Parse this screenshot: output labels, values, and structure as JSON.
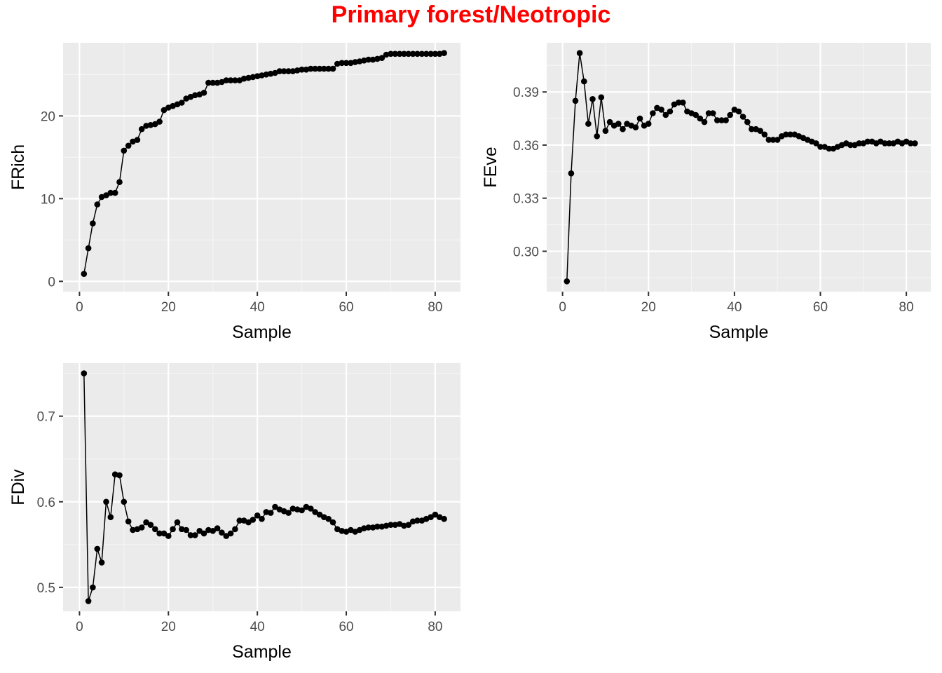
{
  "title": "Primary forest/Neotropic",
  "colors": {
    "title": "#ff0000",
    "panel_bg": "#ebebeb",
    "grid_major": "#ffffff",
    "grid_minor": "#f5f5f5",
    "line": "#000000",
    "point": "#000000",
    "tick_label": "#4d4d4d"
  },
  "chart_data": [
    {
      "type": "line",
      "markers": true,
      "xlabel": "Sample",
      "ylabel": "FRich",
      "xlim": [
        0,
        82
      ],
      "ylim": [
        0,
        27.6
      ],
      "xticks": [
        0,
        20,
        40,
        60,
        80
      ],
      "yticks": [
        0,
        10,
        20
      ],
      "ytick_labels": [
        "0",
        "10",
        "20"
      ],
      "grid": true,
      "x": [
        1,
        2,
        3,
        4,
        5,
        6,
        7,
        8,
        9,
        10,
        11,
        12,
        13,
        14,
        15,
        16,
        17,
        18,
        19,
        20,
        21,
        22,
        23,
        24,
        25,
        26,
        27,
        28,
        29,
        30,
        31,
        32,
        33,
        34,
        35,
        36,
        37,
        38,
        39,
        40,
        41,
        42,
        43,
        44,
        45,
        46,
        47,
        48,
        49,
        50,
        51,
        52,
        53,
        54,
        55,
        56,
        57,
        58,
        59,
        60,
        61,
        62,
        63,
        64,
        65,
        66,
        67,
        68,
        69,
        70,
        71,
        72,
        73,
        74,
        75,
        76,
        77,
        78,
        79,
        80,
        81,
        82
      ],
      "values": [
        0.9,
        4.0,
        7.0,
        9.3,
        10.2,
        10.4,
        10.7,
        10.7,
        12.0,
        15.8,
        16.4,
        16.9,
        17.1,
        18.4,
        18.8,
        18.9,
        19.0,
        19.3,
        20.7,
        21.0,
        21.2,
        21.4,
        21.6,
        22.1,
        22.3,
        22.5,
        22.6,
        22.8,
        24.0,
        24.0,
        24.0,
        24.1,
        24.3,
        24.3,
        24.3,
        24.3,
        24.5,
        24.6,
        24.7,
        24.8,
        24.9,
        25.0,
        25.1,
        25.2,
        25.4,
        25.4,
        25.4,
        25.4,
        25.5,
        25.6,
        25.6,
        25.7,
        25.7,
        25.7,
        25.7,
        25.7,
        25.7,
        26.3,
        26.4,
        26.4,
        26.4,
        26.5,
        26.6,
        26.7,
        26.8,
        26.8,
        26.9,
        27.0,
        27.4,
        27.5,
        27.5,
        27.5,
        27.5,
        27.5,
        27.5,
        27.5,
        27.5,
        27.5,
        27.5,
        27.5,
        27.5,
        27.6
      ]
    },
    {
      "type": "line",
      "markers": true,
      "xlabel": "Sample",
      "ylabel": "FEve",
      "xlim": [
        0,
        82
      ],
      "ylim": [
        0.283,
        0.412
      ],
      "xticks": [
        0,
        20,
        40,
        60,
        80
      ],
      "yticks": [
        0.3,
        0.33,
        0.36,
        0.39
      ],
      "ytick_labels": [
        "0.30",
        "0.33",
        "0.36",
        "0.39"
      ],
      "grid": true,
      "x": [
        1,
        2,
        3,
        4,
        5,
        6,
        7,
        8,
        9,
        10,
        11,
        12,
        13,
        14,
        15,
        16,
        17,
        18,
        19,
        20,
        21,
        22,
        23,
        24,
        25,
        26,
        27,
        28,
        29,
        30,
        31,
        32,
        33,
        34,
        35,
        36,
        37,
        38,
        39,
        40,
        41,
        42,
        43,
        44,
        45,
        46,
        47,
        48,
        49,
        50,
        51,
        52,
        53,
        54,
        55,
        56,
        57,
        58,
        59,
        60,
        61,
        62,
        63,
        64,
        65,
        66,
        67,
        68,
        69,
        70,
        71,
        72,
        73,
        74,
        75,
        76,
        77,
        78,
        79,
        80,
        81,
        82
      ],
      "values": [
        0.283,
        0.344,
        0.385,
        0.412,
        0.396,
        0.372,
        0.386,
        0.365,
        0.387,
        0.368,
        0.373,
        0.371,
        0.372,
        0.369,
        0.372,
        0.371,
        0.37,
        0.375,
        0.371,
        0.372,
        0.378,
        0.381,
        0.38,
        0.377,
        0.379,
        0.383,
        0.384,
        0.384,
        0.379,
        0.378,
        0.377,
        0.375,
        0.373,
        0.378,
        0.378,
        0.374,
        0.374,
        0.374,
        0.377,
        0.38,
        0.379,
        0.376,
        0.373,
        0.369,
        0.369,
        0.368,
        0.366,
        0.363,
        0.363,
        0.363,
        0.365,
        0.366,
        0.366,
        0.366,
        0.365,
        0.364,
        0.363,
        0.362,
        0.361,
        0.359,
        0.359,
        0.358,
        0.358,
        0.359,
        0.36,
        0.361,
        0.36,
        0.36,
        0.361,
        0.361,
        0.362,
        0.362,
        0.361,
        0.362,
        0.361,
        0.361,
        0.361,
        0.362,
        0.361,
        0.362,
        0.361,
        0.361
      ]
    },
    {
      "type": "line",
      "markers": true,
      "xlabel": "Sample",
      "ylabel": "FDiv",
      "xlim": [
        0,
        82
      ],
      "ylim": [
        0.484,
        0.75
      ],
      "xticks": [
        0,
        20,
        40,
        60,
        80
      ],
      "yticks": [
        0.5,
        0.6,
        0.7
      ],
      "ytick_labels": [
        "0.5",
        "0.6",
        "0.7"
      ],
      "grid": true,
      "x": [
        1,
        2,
        3,
        4,
        5,
        6,
        7,
        8,
        9,
        10,
        11,
        12,
        13,
        14,
        15,
        16,
        17,
        18,
        19,
        20,
        21,
        22,
        23,
        24,
        25,
        26,
        27,
        28,
        29,
        30,
        31,
        32,
        33,
        34,
        35,
        36,
        37,
        38,
        39,
        40,
        41,
        42,
        43,
        44,
        45,
        46,
        47,
        48,
        49,
        50,
        51,
        52,
        53,
        54,
        55,
        56,
        57,
        58,
        59,
        60,
        61,
        62,
        63,
        64,
        65,
        66,
        67,
        68,
        69,
        70,
        71,
        72,
        73,
        74,
        75,
        76,
        77,
        78,
        79,
        80,
        81,
        82
      ],
      "values": [
        0.75,
        0.484,
        0.5,
        0.545,
        0.529,
        0.6,
        0.582,
        0.632,
        0.631,
        0.6,
        0.577,
        0.567,
        0.568,
        0.57,
        0.576,
        0.573,
        0.568,
        0.563,
        0.563,
        0.56,
        0.568,
        0.576,
        0.568,
        0.567,
        0.561,
        0.561,
        0.566,
        0.563,
        0.567,
        0.566,
        0.569,
        0.564,
        0.56,
        0.563,
        0.568,
        0.578,
        0.578,
        0.576,
        0.579,
        0.584,
        0.58,
        0.588,
        0.587,
        0.594,
        0.591,
        0.589,
        0.587,
        0.592,
        0.591,
        0.59,
        0.594,
        0.592,
        0.588,
        0.585,
        0.582,
        0.58,
        0.576,
        0.568,
        0.566,
        0.565,
        0.567,
        0.565,
        0.567,
        0.569,
        0.57,
        0.57,
        0.571,
        0.571,
        0.572,
        0.573,
        0.573,
        0.574,
        0.572,
        0.573,
        0.577,
        0.578,
        0.578,
        0.58,
        0.582,
        0.585,
        0.582,
        0.58
      ]
    }
  ]
}
